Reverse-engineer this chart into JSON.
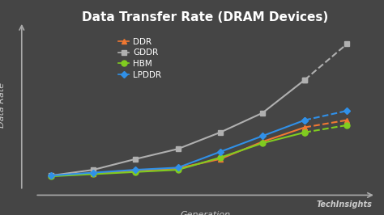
{
  "title": "Data Transfer Rate (DRAM Devices)",
  "xlabel": "Generation",
  "ylabel": "Data Rate",
  "watermark": "TechInsights",
  "background_color": "#454545",
  "plot_bg_color": "#454545",
  "series": {
    "DDR": {
      "x": [
        0,
        1,
        2,
        3,
        4,
        5,
        6,
        7
      ],
      "y": [
        0.05,
        0.08,
        0.12,
        0.15,
        0.28,
        0.52,
        0.72,
        0.82
      ],
      "color": "#f07832",
      "marker": "^",
      "markersize": 5,
      "dashed_from": 6
    },
    "GDDR": {
      "x": [
        0,
        1,
        2,
        3,
        4,
        5,
        6,
        7
      ],
      "y": [
        0.05,
        0.13,
        0.28,
        0.42,
        0.65,
        0.92,
        1.38,
        1.88
      ],
      "color": "#b0b0b0",
      "marker": "s",
      "markersize": 5,
      "dashed_from": 6
    },
    "HBM": {
      "x": [
        0,
        1,
        2,
        3,
        4,
        5,
        6,
        7
      ],
      "y": [
        0.04,
        0.07,
        0.1,
        0.13,
        0.3,
        0.5,
        0.65,
        0.75
      ],
      "color": "#80cc20",
      "marker": "o",
      "markersize": 5,
      "dashed_from": 6
    },
    "LPDDR": {
      "x": [
        0,
        1,
        2,
        3,
        4,
        5,
        6,
        7
      ],
      "y": [
        0.05,
        0.09,
        0.13,
        0.16,
        0.38,
        0.6,
        0.82,
        0.95
      ],
      "color": "#3090e8",
      "marker": "D",
      "markersize": 4,
      "dashed_from": 6
    }
  },
  "legend_order": [
    "DDR",
    "GDDR",
    "HBM",
    "LPDDR"
  ],
  "linewidth": 1.5,
  "title_fontsize": 11,
  "label_fontsize": 8,
  "legend_fontsize": 7.5,
  "watermark_fontsize": 7
}
